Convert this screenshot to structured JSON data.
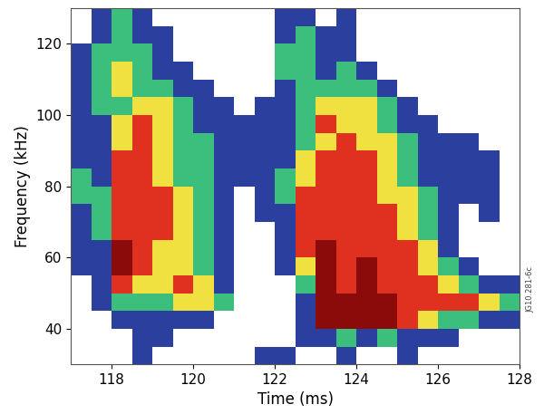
{
  "chart_data": {
    "type": "heatmap",
    "x_label": "Time (ms)",
    "y_label": "Frequency (kHz)",
    "annotation": "JG10.281-6c",
    "x": [
      117.25,
      117.75,
      118.25,
      118.75,
      119.25,
      119.75,
      120.25,
      120.75,
      121.25,
      121.75,
      122.25,
      122.75,
      123.25,
      123.75,
      124.25,
      124.75,
      125.25,
      125.75,
      126.25,
      126.75,
      127.25,
      127.75
    ],
    "y": [
      127.5,
      122.5,
      117.5,
      112.5,
      107.5,
      102.5,
      97.5,
      92.5,
      87.5,
      82.5,
      77.5,
      72.5,
      67.5,
      62.5,
      57.5,
      52.5,
      47.5,
      42.5,
      37.5,
      32.5
    ],
    "cells": [
      [
        0,
        1,
        2,
        1,
        0,
        0,
        0,
        0,
        0,
        0,
        1,
        1,
        0,
        1,
        0,
        0,
        0,
        0,
        0,
        0,
        0,
        0
      ],
      [
        0,
        1,
        2,
        1,
        1,
        0,
        0,
        0,
        0,
        0,
        1,
        2,
        1,
        1,
        0,
        0,
        0,
        0,
        0,
        0,
        0,
        0
      ],
      [
        1,
        2,
        2,
        2,
        1,
        0,
        0,
        0,
        0,
        0,
        2,
        2,
        1,
        1,
        0,
        0,
        0,
        0,
        0,
        0,
        0,
        0
      ],
      [
        1,
        2,
        3,
        2,
        1,
        1,
        0,
        0,
        0,
        0,
        2,
        2,
        1,
        2,
        1,
        0,
        0,
        0,
        0,
        0,
        0,
        0
      ],
      [
        1,
        2,
        3,
        2,
        2,
        1,
        1,
        0,
        0,
        0,
        1,
        2,
        2,
        2,
        2,
        1,
        0,
        0,
        0,
        0,
        0,
        0
      ],
      [
        1,
        2,
        2,
        3,
        3,
        2,
        1,
        1,
        0,
        1,
        1,
        2,
        3,
        3,
        3,
        2,
        1,
        0,
        0,
        0,
        0,
        0
      ],
      [
        1,
        1,
        3,
        4,
        3,
        2,
        1,
        1,
        1,
        1,
        1,
        2,
        4,
        3,
        3,
        2,
        1,
        1,
        0,
        0,
        0,
        0
      ],
      [
        1,
        1,
        3,
        4,
        3,
        2,
        2,
        1,
        1,
        1,
        1,
        2,
        3,
        4,
        3,
        3,
        2,
        1,
        1,
        1,
        0,
        0
      ],
      [
        1,
        1,
        4,
        4,
        3,
        2,
        2,
        1,
        1,
        1,
        1,
        3,
        4,
        4,
        4,
        3,
        2,
        1,
        1,
        1,
        1,
        0
      ],
      [
        2,
        1,
        4,
        4,
        3,
        2,
        2,
        1,
        1,
        1,
        2,
        3,
        4,
        4,
        4,
        3,
        2,
        1,
        1,
        1,
        1,
        0
      ],
      [
        2,
        2,
        4,
        4,
        4,
        3,
        2,
        1,
        0,
        1,
        2,
        4,
        4,
        4,
        4,
        3,
        3,
        2,
        1,
        1,
        1,
        0
      ],
      [
        1,
        2,
        4,
        4,
        4,
        3,
        2,
        1,
        0,
        1,
        1,
        4,
        4,
        4,
        4,
        4,
        3,
        2,
        1,
        0,
        1,
        0
      ],
      [
        1,
        2,
        4,
        4,
        4,
        3,
        2,
        1,
        0,
        0,
        1,
        4,
        4,
        4,
        4,
        4,
        3,
        2,
        1,
        0,
        0,
        0
      ],
      [
        1,
        1,
        5,
        4,
        3,
        3,
        2,
        1,
        0,
        0,
        1,
        4,
        5,
        4,
        4,
        4,
        4,
        3,
        1,
        0,
        0,
        0
      ],
      [
        1,
        1,
        5,
        4,
        3,
        3,
        2,
        1,
        0,
        0,
        1,
        3,
        5,
        4,
        5,
        4,
        4,
        3,
        2,
        1,
        0,
        0
      ],
      [
        0,
        1,
        4,
        3,
        3,
        4,
        3,
        1,
        0,
        0,
        0,
        2,
        5,
        4,
        5,
        4,
        4,
        4,
        3,
        2,
        1,
        1
      ],
      [
        0,
        1,
        2,
        2,
        2,
        3,
        3,
        2,
        0,
        0,
        0,
        1,
        5,
        5,
        5,
        5,
        4,
        4,
        4,
        4,
        3,
        2
      ],
      [
        0,
        0,
        1,
        1,
        1,
        1,
        1,
        0,
        0,
        0,
        0,
        1,
        5,
        5,
        5,
        5,
        4,
        3,
        2,
        2,
        1,
        1
      ],
      [
        0,
        0,
        0,
        1,
        1,
        0,
        0,
        0,
        0,
        0,
        0,
        1,
        1,
        2,
        1,
        2,
        1,
        1,
        1,
        0,
        0,
        0
      ],
      [
        0,
        0,
        0,
        1,
        0,
        0,
        0,
        0,
        0,
        1,
        1,
        0,
        0,
        1,
        0,
        0,
        1,
        0,
        0,
        0,
        0,
        0
      ]
    ],
    "value_range": [
      0,
      5
    ],
    "colors": [
      "#ffffff",
      "#2b3f9e",
      "#3cbf7c",
      "#f0e040",
      "#e03020",
      "#8b0a0a"
    ],
    "xlim": [
      117,
      128
    ],
    "xticks": [
      118,
      120,
      122,
      124,
      126,
      128
    ],
    "ylim": [
      30,
      130
    ],
    "yticks": [
      40,
      60,
      80,
      100,
      120
    ],
    "grid": false
  }
}
